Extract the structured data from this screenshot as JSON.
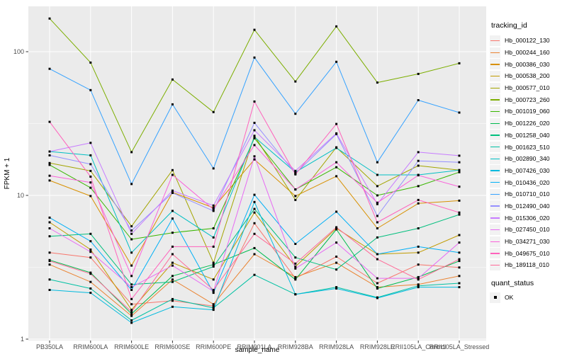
{
  "figure": {
    "y_axis_title": "FPKM + 1",
    "x_axis_title": "sample_name"
  },
  "legend": {
    "tracking_title": "tracking_id",
    "quant_title": "quant_status",
    "quant_ok_label": "OK"
  },
  "colors": {
    "panel_background": "#EBEBEB",
    "grid": "#FFFFFF",
    "tick_text": "#4D4D4D",
    "axis_title_text": "#000000",
    "marker": "#000000",
    "legend_key_background": "#F2F2F2"
  },
  "chart_data": {
    "type": "line",
    "title": "",
    "xlabel": "sample_name",
    "ylabel": "FPKM + 1",
    "y_scale": "log10",
    "y_tick_values": [
      1,
      10,
      100
    ],
    "y_minor_values": [
      3.1623,
      31.623
    ],
    "ylim_log_range": [
      0.977,
      207
    ],
    "grid": "on",
    "legend_position": "right",
    "point_marker": "small-black-square",
    "quant_status_of_all_points": "OK",
    "categories": [
      "PB350LA",
      "RRIM600LA",
      "RRIM600LE",
      "RRIM600SE",
      "RRIM600PE",
      "RRIM901LA",
      "RRIM928BA",
      "RRIM928LA",
      "RRIM928LE",
      "RRII105LA_Control",
      "RRII105LA_Stressed"
    ],
    "series": [
      {
        "name": "Hb_000122_130",
        "color": "#F8766D",
        "values": [
          4.0,
          3.7,
          1.75,
          1.85,
          1.7,
          6.4,
          2.65,
          3.75,
          2.45,
          3.3,
          3.15
        ]
      },
      {
        "name": "Hb_000244_160",
        "color": "#EA8331",
        "values": [
          3.3,
          2.5,
          1.45,
          2.6,
          1.75,
          3.9,
          2.7,
          3.4,
          2.3,
          2.4,
          2.75
        ]
      },
      {
        "name": "Hb_000386_030",
        "color": "#D89000",
        "values": [
          12.7,
          9.9,
          3.25,
          10.5,
          8.2,
          17.8,
          9.9,
          13.6,
          5.9,
          8.8,
          9.2
        ]
      },
      {
        "name": "Hb_000538_200",
        "color": "#C09B00",
        "values": [
          6.5,
          4.2,
          1.6,
          3.4,
          2.6,
          7.6,
          3.2,
          5.9,
          3.9,
          4.0,
          5.3
        ]
      },
      {
        "name": "Hb_000577_010",
        "color": "#A3A500",
        "values": [
          16.8,
          14.8,
          6.1,
          15.0,
          3.4,
          26.0,
          9.3,
          21.6,
          11.6,
          16.1,
          15.0
        ]
      },
      {
        "name": "Hb_000723_260",
        "color": "#7CAE00",
        "values": [
          170,
          84,
          20,
          64,
          38,
          142,
          62,
          150,
          61,
          70,
          83
        ]
      },
      {
        "name": "Hb_001019_060",
        "color": "#39B600",
        "values": [
          16.3,
          11.3,
          4.95,
          5.5,
          5.9,
          25.0,
          11.0,
          15.7,
          10.0,
          11.6,
          14.5
        ]
      },
      {
        "name": "Hb_001226_020",
        "color": "#00BB4E",
        "values": [
          3.55,
          2.9,
          1.5,
          2.75,
          3.3,
          4.3,
          2.6,
          5.8,
          2.25,
          2.7,
          3.5
        ]
      },
      {
        "name": "Hb_001258_040",
        "color": "#00BF7D",
        "values": [
          5.2,
          5.4,
          2.4,
          2.5,
          3.2,
          8.05,
          3.7,
          3.05,
          5.1,
          5.9,
          7.35
        ]
      },
      {
        "name": "Hb_001623_510",
        "color": "#00C1A3",
        "values": [
          2.6,
          2.25,
          1.35,
          1.9,
          1.65,
          2.8,
          2.05,
          2.3,
          1.95,
          2.35,
          2.45
        ]
      },
      {
        "name": "Hb_002890_340",
        "color": "#00BFC4",
        "values": [
          20.2,
          19.0,
          4.0,
          7.8,
          5.1,
          25.5,
          14.5,
          21.4,
          13.9,
          13.9,
          15.0
        ]
      },
      {
        "name": "Hb_007426_030",
        "color": "#00BADE",
        "values": [
          2.2,
          2.1,
          1.3,
          1.68,
          1.6,
          9.0,
          2.05,
          2.25,
          1.93,
          2.3,
          2.3
        ]
      },
      {
        "name": "Hb_010436_020",
        "color": "#00B0F6",
        "values": [
          7.0,
          4.8,
          2.2,
          6.9,
          2.1,
          10.1,
          4.6,
          7.7,
          3.9,
          4.4,
          4.0
        ]
      },
      {
        "name": "Hb_010710_010",
        "color": "#35A2FF",
        "values": [
          76,
          54,
          12,
          43,
          15.4,
          91,
          37,
          85,
          17,
          46,
          37.7
        ]
      },
      {
        "name": "Hb_012490_040",
        "color": "#9590FF",
        "values": [
          19.0,
          16.5,
          5.7,
          10.4,
          7.8,
          32.0,
          14.2,
          26.7,
          7.2,
          17.4,
          17.0
        ]
      },
      {
        "name": "Hb_015306_020",
        "color": "#C77CFF",
        "values": [
          20.2,
          23.2,
          5.4,
          10.8,
          8.5,
          28.4,
          14.8,
          27.0,
          8.7,
          20.0,
          18.9
        ]
      },
      {
        "name": "Hb_027450_010",
        "color": "#E76BF3",
        "values": [
          5.9,
          4.05,
          2.3,
          3.25,
          2.15,
          18.7,
          3.1,
          4.7,
          2.65,
          2.65,
          4.7
        ]
      },
      {
        "name": "Hb_034271_030",
        "color": "#FA62DB",
        "values": [
          13.7,
          12.3,
          2.75,
          13.9,
          8.0,
          22.4,
          11.0,
          17.0,
          8.9,
          13.8,
          11.5
        ]
      },
      {
        "name": "Hb_049675_010",
        "color": "#FF62BC",
        "values": [
          32.5,
          13.5,
          1.9,
          4.4,
          4.4,
          45.0,
          14.0,
          31.4,
          6.5,
          9.3,
          7.6
        ]
      },
      {
        "name": "Hb_189118_010",
        "color": "#FF6A98",
        "values": [
          3.5,
          2.85,
          1.55,
          3.9,
          2.2,
          5.4,
          3.35,
          6.0,
          3.6,
          2.6,
          3.6
        ]
      }
    ]
  }
}
